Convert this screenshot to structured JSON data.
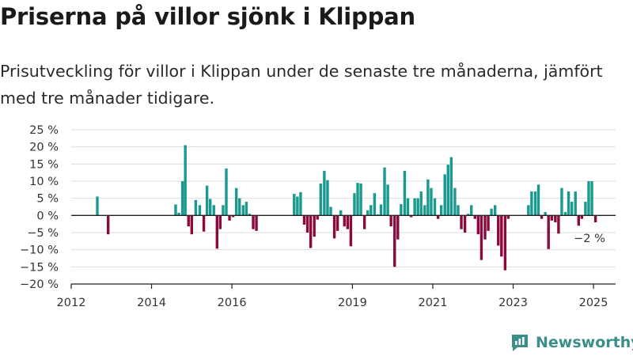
{
  "title": "Priserna på villor sjönk i Klippan",
  "subtitle": "Prisutveckling för villor i Klippan under de senaste tre månaderna, jämfört med tre månader tidigare.",
  "brand": {
    "name": "Newsworthy",
    "icon": "newsworthy-logo-icon",
    "color": "#3a8f8a"
  },
  "colors": {
    "positive": "#1a9a8e",
    "negative": "#8b0a3e",
    "grid": "#dddddd",
    "axis": "#222222"
  },
  "chart_data": {
    "type": "bar",
    "title": "",
    "xlabel": "",
    "ylabel": "",
    "ylim": [
      -20,
      25
    ],
    "xlim": [
      2012.0,
      2025.55
    ],
    "y_ticks": [
      -20,
      -15,
      -10,
      -5,
      0,
      5,
      10,
      15,
      20,
      25
    ],
    "y_tick_labels": [
      "−20 %",
      "−15 %",
      "−10 %",
      "−5 %",
      "0 %",
      "5 %",
      "10 %",
      "15 %",
      "20 %",
      "25 %"
    ],
    "x_ticks": [
      2012,
      2014,
      2016,
      2019,
      2021,
      2023,
      2025
    ],
    "x_tick_labels": [
      "2012",
      "2014",
      "2016",
      "2019",
      "2021",
      "2023",
      "2025"
    ],
    "grid": true,
    "unit": "%",
    "annotation": {
      "text": "−2 %",
      "x": 2025.0,
      "y": -2
    },
    "series": [
      {
        "x": [
          2012.65,
          2012.92,
          2014.6,
          2014.68,
          2014.77,
          2014.84,
          2014.92,
          2015.0,
          2015.1,
          2015.2,
          2015.3,
          2015.38,
          2015.46,
          2015.55,
          2015.63,
          2015.71,
          2015.78,
          2015.86,
          2015.94,
          2016.03,
          2016.11,
          2016.19,
          2016.28,
          2016.36,
          2016.44,
          2016.53,
          2016.61,
          2016.69,
          2016.78,
          2016.86,
          2016.94
        ],
        "values": [
          5.5,
          -5.5,
          3.2,
          0.8,
          10,
          20.5,
          -3.2,
          -5.5,
          4.5,
          3,
          -4.7,
          8.7,
          4.8,
          3,
          -9.7,
          -4,
          3,
          13.7,
          -1.5,
          -0.5,
          8,
          5,
          3,
          4,
          0.5,
          -4,
          -4.5,
          0,
          0,
          0,
          0
        ]
      },
      {
        "x": [
          2017.55,
          2017.63,
          2017.71,
          2017.8,
          2017.88,
          2017.96,
          2018.05,
          2018.13,
          2018.21,
          2018.3,
          2018.38,
          2018.46,
          2018.55,
          2018.63,
          2018.71,
          2018.8,
          2018.88,
          2018.96,
          2019.05,
          2019.13,
          2019.21,
          2019.3,
          2019.38,
          2019.46,
          2019.55,
          2019.63,
          2019.71,
          2019.8,
          2019.88,
          2019.96,
          2020.05,
          2020.13,
          2020.21,
          2020.3,
          2020.38,
          2020.46,
          2020.55,
          2020.63,
          2020.71,
          2020.8,
          2020.88,
          2020.96,
          2021.05,
          2021.13,
          2021.21,
          2021.3,
          2021.38,
          2021.46,
          2021.55,
          2021.63,
          2021.71,
          2021.8,
          2021.88,
          2021.96,
          2022.05,
          2022.13,
          2022.21,
          2022.3,
          2022.38,
          2022.46,
          2022.55,
          2022.63,
          2022.71,
          2022.8
        ],
        "values": [
          6.3,
          5.5,
          6.8,
          -2.7,
          -5,
          -9.5,
          -6.2,
          -1.2,
          9.3,
          13,
          10.3,
          2.5,
          -6.7,
          -4.5,
          1.5,
          -3.2,
          -4,
          -9,
          6.5,
          9.5,
          9.3,
          -4,
          1.5,
          3,
          6.5,
          0.3,
          3.2,
          14,
          9,
          -3.2,
          -15,
          -7,
          3.3,
          13,
          5,
          -0.5,
          5,
          5,
          7,
          3,
          10.5,
          8,
          5,
          -1,
          3,
          12,
          14.8,
          17,
          8,
          3,
          -4,
          -5,
          0.5,
          3,
          -1,
          -5.5,
          -13,
          -7,
          -4.5,
          2,
          3,
          -8.8,
          -12,
          -16
        ]
      },
      {
        "x": [
          2022.88,
          2022.96,
          2023.05,
          2023.13,
          2023.21,
          2023.3,
          2023.38,
          2023.46,
          2023.55,
          2023.63,
          2023.71,
          2023.8,
          2023.88,
          2023.96,
          2024.05,
          2024.13,
          2024.21,
          2024.3,
          2024.38,
          2024.46,
          2024.55,
          2024.63,
          2024.71,
          2024.8,
          2024.88,
          2024.96,
          2025.05
        ],
        "values": [
          -1,
          0,
          0,
          0,
          0,
          0,
          3,
          7,
          7,
          9,
          -1,
          1,
          -9.8,
          -1.5,
          -2,
          -5.3,
          8,
          1,
          7,
          4,
          7,
          -3,
          -1,
          4,
          10,
          10,
          -2
        ]
      }
    ]
  }
}
